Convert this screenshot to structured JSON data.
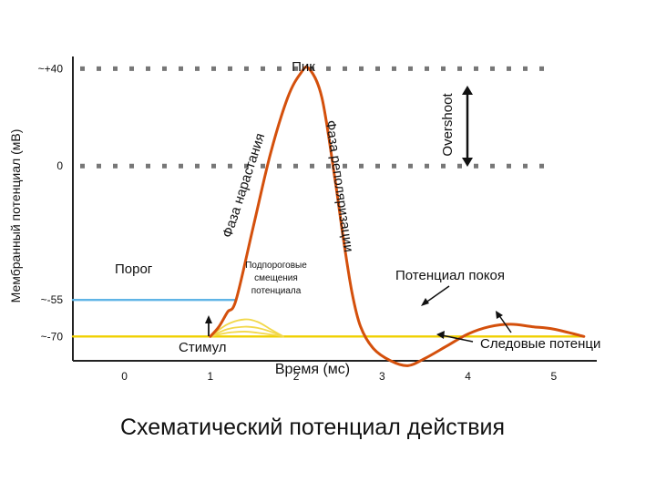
{
  "chart_data": {
    "type": "line",
    "title": "Схематический потенциал действия",
    "xlabel": "Время (мс)",
    "ylabel": "Мембранный потенциал (мВ)",
    "xlim": [
      -0.6,
      5.5
    ],
    "ylim": [
      -80,
      45
    ],
    "x_ticks": [
      "0",
      "1",
      "2",
      "3",
      "4",
      "5"
    ],
    "x_tick_values": [
      0,
      1,
      2,
      3,
      4,
      5
    ],
    "y_ticks": [
      {
        "label": "~+40",
        "value": 40
      },
      {
        "label": "0",
        "value": 0
      },
      {
        "label": "~-55",
        "value": -55
      },
      {
        "label": "~-70",
        "value": -70
      }
    ],
    "grid": "dotted lines at +40 and 0",
    "series": [
      {
        "type": "action-potential",
        "color": "#d4500c",
        "x": [
          1.0,
          1.1,
          1.2,
          1.3,
          1.5,
          1.7,
          1.9,
          2.05,
          2.15,
          2.3,
          2.45,
          2.55,
          2.65,
          2.75,
          2.9,
          3.1,
          3.3,
          3.5,
          3.75,
          4.0,
          4.25,
          4.5,
          4.75,
          5.0,
          5.35
        ],
        "y": [
          -70,
          -66,
          -60,
          -55,
          -25,
          5,
          28,
          38,
          40,
          28,
          -5,
          -30,
          -52,
          -66,
          -75,
          -80,
          -82,
          -79,
          -74,
          -69,
          -66,
          -65,
          -66,
          -67,
          -70
        ]
      },
      {
        "type": "resting-line",
        "color": "#f0d000",
        "x": [
          -0.6,
          5.35
        ],
        "y": [
          -70,
          -70
        ]
      },
      {
        "type": "subthreshold-1",
        "color": "#f2d84a",
        "x": [
          1.0,
          1.2,
          1.4,
          1.55,
          1.7,
          1.85
        ],
        "y": [
          -70,
          -65,
          -63,
          -64,
          -67,
          -70
        ]
      },
      {
        "type": "subthreshold-2",
        "color": "#f2d84a",
        "x": [
          1.0,
          1.2,
          1.4,
          1.55,
          1.7,
          1.85
        ],
        "y": [
          -70,
          -67,
          -66,
          -66.5,
          -68,
          -70
        ]
      },
      {
        "type": "subthreshold-3",
        "color": "#f2d84a",
        "x": [
          1.0,
          1.2,
          1.4,
          1.55,
          1.7,
          1.85
        ],
        "y": [
          -70,
          -68.5,
          -68,
          -68.5,
          -69.2,
          -70
        ]
      },
      {
        "type": "threshold-line",
        "color": "#5fb4e6",
        "x": [
          -0.6,
          1.3
        ],
        "y": [
          -55,
          -55
        ]
      }
    ],
    "annotations": {
      "peak": "Пик",
      "rising_phase": "Фаза нарастания",
      "repolarization_phase": "Фаза реполяризации",
      "overshoot": "Overshoot",
      "threshold": "Порог",
      "subthreshold": [
        "Подпороговые",
        "смещения",
        "потенциала"
      ],
      "stimulus": "Стимул",
      "resting_potential": "Потенциал покоя",
      "after_potential": "Следовые потенци"
    },
    "colors": {
      "action_potential": "#d4500c",
      "resting": "#f0d000",
      "threshold": "#5fb4e6",
      "grid": "#777777"
    }
  }
}
